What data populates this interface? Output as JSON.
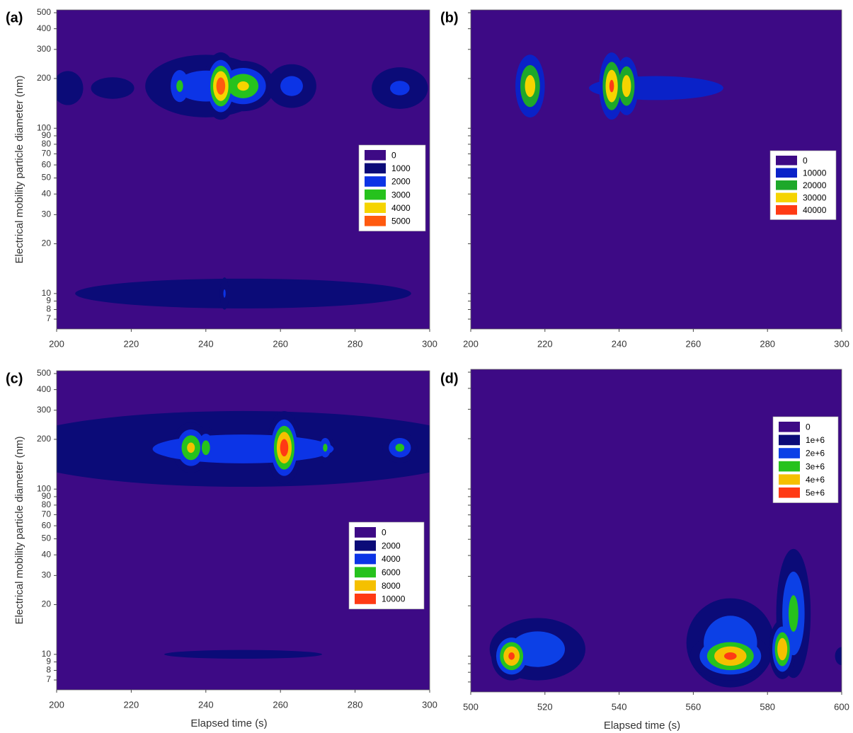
{
  "chart_data": [
    {
      "type": "contour",
      "label": "(a)",
      "ylabel": "Electrical mobility particle diameter (nm)",
      "xlim": [
        200,
        300
      ],
      "xticks": [
        200,
        220,
        240,
        260,
        280,
        300
      ],
      "ylim": [
        6.1,
        520
      ],
      "log_y": true,
      "ytick_labels": true,
      "yticks": [
        7,
        8,
        9,
        10,
        20,
        30,
        40,
        50,
        60,
        70,
        80,
        90,
        100,
        200,
        300,
        400,
        500
      ],
      "levels": [
        0,
        1000,
        2000,
        3000,
        4000,
        5000
      ],
      "colors": [
        "#3d0a85",
        "#0b0b78",
        "#0c34e6",
        "#26c21d",
        "#f5d400",
        "#ff5a0f"
      ],
      "hotspots": [
        {
          "x": 203,
          "y": 175,
          "peak": 1700,
          "x_spread": 4,
          "y_spread": 0.1
        },
        {
          "x": 215,
          "y": 175,
          "peak": 1300,
          "x_spread": 8,
          "y_spread": 0.09
        },
        {
          "x": 233,
          "y": 180,
          "peak": 3200,
          "x_spread": 2.5,
          "y_spread": 0.1
        },
        {
          "x": 240,
          "y": 180,
          "peak": 2500,
          "x_spread": 12,
          "y_spread": 0.14
        },
        {
          "x": 250,
          "y": 180,
          "peak": 4200,
          "x_spread": 5,
          "y_spread": 0.09
        },
        {
          "x": 244,
          "y": 180,
          "peak": 5600,
          "x_spread": 2.5,
          "y_spread": 0.11
        },
        {
          "x": 263,
          "y": 180,
          "peak": 2400,
          "x_spread": 5,
          "y_spread": 0.1
        },
        {
          "x": 292,
          "y": 175,
          "peak": 2200,
          "x_spread": 6,
          "y_spread": 0.1
        },
        {
          "x": 250,
          "y": 10,
          "peak": 1500,
          "x_spread": 50,
          "y_spread": 0.1
        },
        {
          "x": 245,
          "y": 10,
          "peak": 2100,
          "x_spread": 1,
          "y_spread": 0.08
        }
      ]
    },
    {
      "type": "contour",
      "label": "(b)",
      "xlim": [
        200,
        300
      ],
      "xticks": [
        200,
        220,
        240,
        260,
        280,
        300
      ],
      "ylim": [
        6.1,
        520
      ],
      "log_y": true,
      "ytick_labels": false,
      "yticks": [
        7,
        8,
        9,
        10,
        20,
        30,
        40,
        50,
        60,
        70,
        80,
        90,
        100,
        200,
        300,
        400,
        500
      ],
      "levels": [
        0,
        10000,
        20000,
        30000,
        40000
      ],
      "colors": [
        "#3d0a85",
        "#0a22c8",
        "#1ea82a",
        "#f5d400",
        "#ff3a14"
      ],
      "hotspots": [
        {
          "x": 250,
          "y": 175,
          "peak": 13000,
          "x_spread": 25,
          "y_spread": 0.1
        },
        {
          "x": 216,
          "y": 180,
          "peak": 35000,
          "x_spread": 2.5,
          "y_spread": 0.12
        },
        {
          "x": 238,
          "y": 180,
          "peak": 42000,
          "x_spread": 2,
          "y_spread": 0.12
        },
        {
          "x": 242,
          "y": 180,
          "peak": 36000,
          "x_spread": 2,
          "y_spread": 0.11
        }
      ]
    },
    {
      "type": "contour",
      "label": "(c)",
      "ylabel": "Electrical mobility particle diameter (nm)",
      "xlabel": "Elapsed time (s)",
      "xlim": [
        200,
        300
      ],
      "xticks": [
        200,
        220,
        240,
        260,
        280,
        300
      ],
      "ylim": [
        6.1,
        520
      ],
      "log_y": true,
      "ytick_labels": true,
      "yticks": [
        7,
        8,
        9,
        10,
        20,
        30,
        40,
        50,
        60,
        70,
        80,
        90,
        100,
        200,
        300,
        400,
        500
      ],
      "levels": [
        0,
        2000,
        4000,
        6000,
        8000,
        10000
      ],
      "colors": [
        "#3d0a85",
        "#0b0b78",
        "#0c34e6",
        "#26c21d",
        "#f5c000",
        "#ff3a14"
      ],
      "hotspots": [
        {
          "x": 250,
          "y": 175,
          "peak": 4500,
          "x_spread": 50,
          "y_spread": 0.18
        },
        {
          "x": 236,
          "y": 178,
          "peak": 8500,
          "x_spread": 3,
          "y_spread": 0.09
        },
        {
          "x": 240,
          "y": 178,
          "peak": 7000,
          "x_spread": 2,
          "y_spread": 0.08
        },
        {
          "x": 261,
          "y": 178,
          "peak": 11000,
          "x_spread": 2.5,
          "y_spread": 0.12
        },
        {
          "x": 272,
          "y": 178,
          "peak": 6500,
          "x_spread": 1.5,
          "y_spread": 0.06
        },
        {
          "x": 292,
          "y": 178,
          "peak": 6500,
          "x_spread": 3,
          "y_spread": 0.06
        },
        {
          "x": 250,
          "y": 10,
          "peak": 2300,
          "x_spread": 40,
          "y_spread": 0.05
        }
      ]
    },
    {
      "type": "contour",
      "label": "(d)",
      "xlabel": "Elapsed time (s)",
      "xlim": [
        500,
        600
      ],
      "xticks": [
        500,
        520,
        540,
        560,
        580,
        600
      ],
      "ylim": [
        6.1,
        520
      ],
      "log_y": true,
      "ytick_labels": false,
      "yticks": [
        7,
        8,
        9,
        10,
        20,
        30,
        40,
        50,
        60,
        70,
        80,
        90,
        100,
        200,
        300,
        400,
        500
      ],
      "levels": [
        0,
        {
          "value": 1000000,
          "label": "1e+6"
        },
        {
          "value": 2000000,
          "label": "2e+6"
        },
        {
          "value": 3000000,
          "label": "3e+6"
        },
        {
          "value": 4000000,
          "label": "4e+6"
        },
        {
          "value": 5000000,
          "label": "5e+6"
        }
      ],
      "colors": [
        "#3d0a85",
        "#0b0b78",
        "#0c40e6",
        "#26c21d",
        "#f5c000",
        "#ff3a14"
      ],
      "hotspots": [
        {
          "x": 518,
          "y": 11,
          "peak": 2800000,
          "x_spread": 9,
          "y_spread": 0.13
        },
        {
          "x": 511,
          "y": 10,
          "peak": 5200000,
          "x_spread": 3,
          "y_spread": 0.08
        },
        {
          "x": 570,
          "y": 12,
          "peak": 3000000,
          "x_spread": 8,
          "y_spread": 0.18
        },
        {
          "x": 570,
          "y": 10,
          "peak": 5200000,
          "x_spread": 6,
          "y_spread": 0.08
        },
        {
          "x": 587,
          "y": 18,
          "peak": 3300000,
          "x_spread": 3,
          "y_spread": 0.25
        },
        {
          "x": 584,
          "y": 11,
          "peak": 5000000,
          "x_spread": 2,
          "y_spread": 0.1
        },
        {
          "x": 600,
          "y": 10,
          "peak": 1500000,
          "x_spread": 2,
          "y_spread": 0.06
        }
      ]
    }
  ]
}
